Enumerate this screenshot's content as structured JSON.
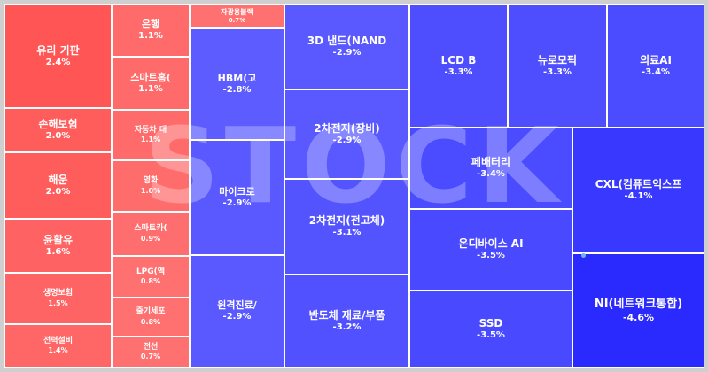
{
  "chart_data": {
    "type": "treemap",
    "watermark": "STOCK",
    "colors": {
      "positive": "#ff5757",
      "negative": "#3b3bff",
      "frame": "#ffffff",
      "background": "#cfcfcf"
    },
    "items": [
      {
        "name": "유리 기판",
        "value": "2.4%",
        "change": 2.4
      },
      {
        "name": "손해보험",
        "value": "2.0%",
        "change": 2.0
      },
      {
        "name": "해운",
        "value": "2.0%",
        "change": 2.0
      },
      {
        "name": "윤활유",
        "value": "1.6%",
        "change": 1.6
      },
      {
        "name": "생명보험",
        "value": "1.5%",
        "change": 1.5
      },
      {
        "name": "전력설비",
        "value": "1.4%",
        "change": 1.4
      },
      {
        "name": "은행",
        "value": "1.1%",
        "change": 1.1
      },
      {
        "name": "스마트홈(",
        "value": "1.1%",
        "change": 1.1
      },
      {
        "name": "자동차 대",
        "value": "1.1%",
        "change": 1.1
      },
      {
        "name": "영화",
        "value": "1.0%",
        "change": 1.0
      },
      {
        "name": "스마트카(",
        "value": "0.9%",
        "change": 0.9
      },
      {
        "name": "LPG(액",
        "value": "0.8%",
        "change": 0.8
      },
      {
        "name": "줄기세포",
        "value": "0.8%",
        "change": 0.8
      },
      {
        "name": "전선",
        "value": "0.7%",
        "change": 0.7
      },
      {
        "name": "자광용블랙",
        "value": "0.7%",
        "change": 0.7
      },
      {
        "name": "HBM(고",
        "value": "-2.8%",
        "change": -2.8
      },
      {
        "name": "마이크로",
        "value": "-2.9%",
        "change": -2.9
      },
      {
        "name": "원격진료/",
        "value": "-2.9%",
        "change": -2.9
      },
      {
        "name": "3D 낸드(NAND",
        "value": "-2.9%",
        "change": -2.9
      },
      {
        "name": "2차전지(장비)",
        "value": "-2.9%",
        "change": -2.9
      },
      {
        "name": "2차전지(전고체)",
        "value": "-3.1%",
        "change": -3.1
      },
      {
        "name": "반도체 재료/부품",
        "value": "-3.2%",
        "change": -3.2
      },
      {
        "name": "LCD B",
        "value": "-3.3%",
        "change": -3.3
      },
      {
        "name": "뉴로모픽",
        "value": "-3.3%",
        "change": -3.3
      },
      {
        "name": "의료AI",
        "value": "-3.4%",
        "change": -3.4
      },
      {
        "name": "페배터리",
        "value": "-3.4%",
        "change": -3.4
      },
      {
        "name": "온디바이스 AI",
        "value": "-3.5%",
        "change": -3.5
      },
      {
        "name": "SSD",
        "value": "-3.5%",
        "change": -3.5
      },
      {
        "name": "CXL(컴퓨트익스프",
        "value": "-4.1%",
        "change": -4.1
      },
      {
        "name": "NI(네트워크통합)",
        "value": "-4.6%",
        "change": -4.6
      }
    ]
  }
}
